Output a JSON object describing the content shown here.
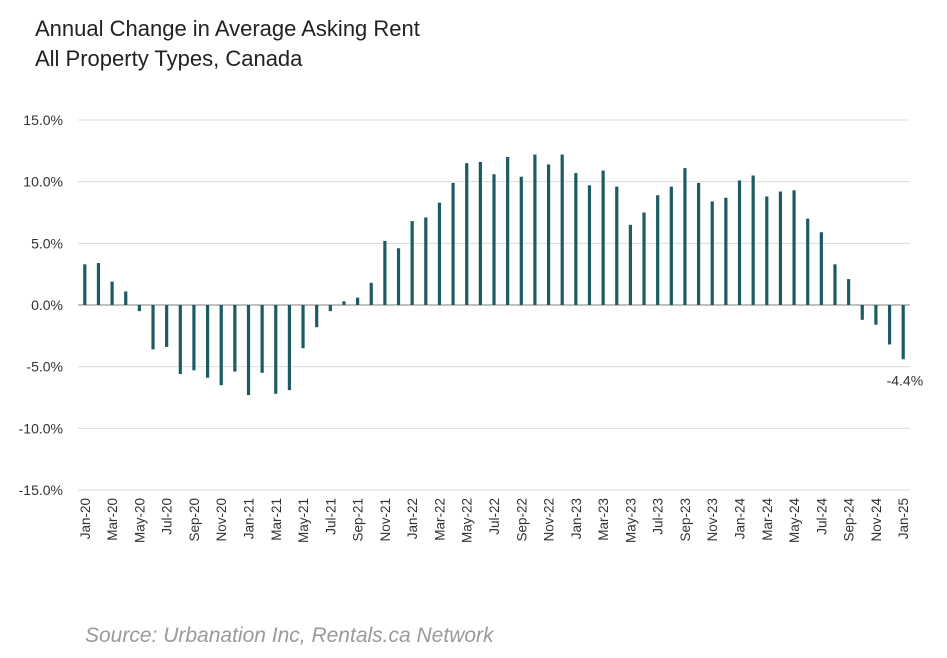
{
  "chart_data": {
    "type": "bar",
    "title": "Annual Change in Average Asking Rent",
    "subtitle": "All Property Types, Canada",
    "xlabel": "",
    "ylabel": "",
    "ylim": [
      -15,
      15
    ],
    "yticks": [
      15,
      10,
      5,
      0,
      -5,
      -10,
      -15
    ],
    "ytick_labels": [
      "15.0%",
      "10.0%",
      "5.0%",
      "0.0%",
      "-5.0%",
      "-10.0%",
      "-15.0%"
    ],
    "grid": true,
    "legend": "none",
    "bar_color": "#1d5b63",
    "categories": [
      "Jan-20",
      "Feb-20",
      "Mar-20",
      "Apr-20",
      "May-20",
      "Jun-20",
      "Jul-20",
      "Aug-20",
      "Sep-20",
      "Oct-20",
      "Nov-20",
      "Dec-20",
      "Jan-21",
      "Feb-21",
      "Mar-21",
      "Apr-21",
      "May-21",
      "Jun-21",
      "Jul-21",
      "Aug-21",
      "Sep-21",
      "Oct-21",
      "Nov-21",
      "Dec-21",
      "Jan-22",
      "Feb-22",
      "Mar-22",
      "Apr-22",
      "May-22",
      "Jun-22",
      "Jul-22",
      "Aug-22",
      "Sep-22",
      "Oct-22",
      "Nov-22",
      "Dec-22",
      "Jan-23",
      "Feb-23",
      "Mar-23",
      "Apr-23",
      "May-23",
      "Jun-23",
      "Jul-23",
      "Aug-23",
      "Sep-23",
      "Oct-23",
      "Nov-23",
      "Dec-23",
      "Jan-24",
      "Feb-24",
      "Mar-24",
      "Apr-24",
      "May-24",
      "Jun-24",
      "Jul-24",
      "Aug-24",
      "Sep-24",
      "Oct-24",
      "Nov-24",
      "Dec-24",
      "Jan-25"
    ],
    "x_tick_labels": [
      "Jan-20",
      "Mar-20",
      "May-20",
      "Jul-20",
      "Sep-20",
      "Nov-20",
      "Jan-21",
      "Mar-21",
      "May-21",
      "Jul-21",
      "Sep-21",
      "Nov-21",
      "Jan-22",
      "Mar-22",
      "May-22",
      "Jul-22",
      "Sep-22",
      "Nov-22",
      "Jan-23",
      "Mar-23",
      "May-23",
      "Jul-23",
      "Sep-23",
      "Nov-23",
      "Jan-24",
      "Mar-24",
      "May-24",
      "Jul-24",
      "Sep-24",
      "Nov-24",
      "Jan-25"
    ],
    "values": [
      3.3,
      3.4,
      1.9,
      1.1,
      -0.5,
      -3.6,
      -3.4,
      -5.6,
      -5.3,
      -5.9,
      -6.5,
      -5.4,
      -7.3,
      -5.5,
      -7.2,
      -6.9,
      -3.5,
      -1.8,
      -0.5,
      0.3,
      0.6,
      1.8,
      5.2,
      4.6,
      6.8,
      7.1,
      8.3,
      9.9,
      11.5,
      11.6,
      10.6,
      12.0,
      10.4,
      12.2,
      11.4,
      12.2,
      10.7,
      9.7,
      10.9,
      9.6,
      6.5,
      7.5,
      8.9,
      9.6,
      11.1,
      9.9,
      8.4,
      8.7,
      10.1,
      10.5,
      8.8,
      9.2,
      9.3,
      7.0,
      5.9,
      3.3,
      2.1,
      -1.2,
      -1.6,
      -3.2,
      -4.4
    ],
    "annotations": [
      {
        "category": "Jan-25",
        "label": "-4.4%"
      }
    ]
  },
  "source": "Source: Urbanation Inc, Rentals.ca Network"
}
